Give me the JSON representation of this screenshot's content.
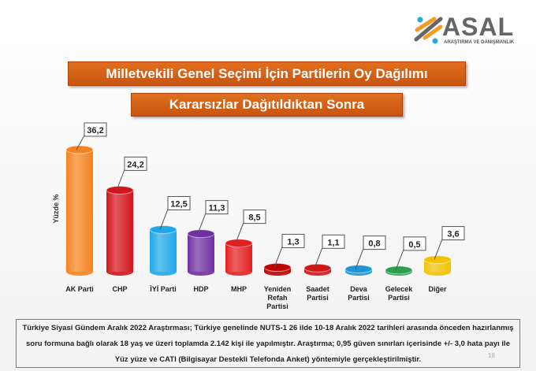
{
  "logo": {
    "name": "ASAL",
    "subtitle": "ARAŞTIRMA VE DANIŞMANLIK"
  },
  "title": "Milletvekili Genel Seçimi İçin Partilerin Oy Dağılımı",
  "subtitle": "Kararsızlar Dağıtıldıktan Sonra",
  "chart_data": {
    "type": "bar",
    "title": "Milletvekili Genel Seçimi İçin Partilerin Oy Dağılımı",
    "subtitle": "Kararsızlar Dağıtıldıktan Sonra",
    "ylabel": "Yüzde %",
    "categories": [
      "AK Parti",
      "CHP",
      "İYİ Parti",
      "HDP",
      "MHP",
      "Yeniden Refah Partisi",
      "Saadet Partisi",
      "Deva Partisi",
      "Gelecek Partisi",
      "Diğer"
    ],
    "values": [
      36.2,
      24.2,
      12.5,
      11.3,
      8.5,
      1.3,
      1.1,
      0.8,
      0.5,
      3.6
    ],
    "labels": [
      "36,2",
      "24,2",
      "12,5",
      "11,3",
      "8,5",
      "1,3",
      "1,1",
      "0,8",
      "0,5",
      "3,6"
    ],
    "colors": [
      "#f5821f",
      "#d3141c",
      "#1fa8e8",
      "#7030a0",
      "#e3201f",
      "#c00000",
      "#d01818",
      "#1e96d4",
      "#2e9e4f",
      "#f2c200"
    ],
    "ylim": [
      0,
      40
    ],
    "grid": false
  },
  "note": {
    "lines": [
      "Türkiye Siyasi Gündem Aralık 2022 Araştırması; Türkiye genelinde NUTS-1 26 ilde 10-18 Aralık 2022 tarihleri arasında önceden hazırlanmış",
      "soru formuna bağlı olarak 18 yaş ve üzeri toplamda 2.142 kişi ile yapılmıştır. Araştırma; 0,95 güven sınırları içerisinde +/- 3,0 hata payı ile",
      "Yüz yüze ve CATI (Bilgisayar Destekli Telefonda Anket) yöntemiyle gerçekleştirilmiştir."
    ]
  },
  "page_number": "18"
}
